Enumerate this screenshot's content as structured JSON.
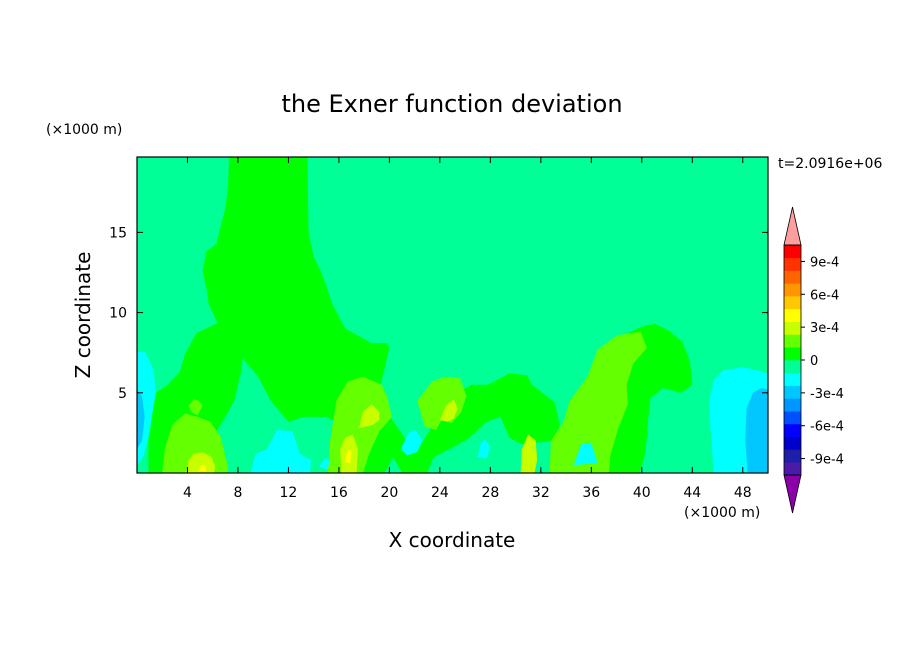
{
  "chart_data": {
    "type": "heatmap",
    "title": "the Exner function deviation",
    "xlabel": "X coordinate",
    "ylabel": "Z coordinate",
    "x_unit": "(×1000 m)",
    "y_unit": "(×1000 m)",
    "time_label": "t=2.0916e+06",
    "xlim": [
      0,
      50
    ],
    "ylim": [
      0,
      19.7
    ],
    "x_ticks": [
      4,
      8,
      12,
      16,
      20,
      24,
      28,
      32,
      36,
      40,
      44,
      48
    ],
    "y_ticks": [
      5,
      10,
      15
    ],
    "colorbar": {
      "levels": [
        -0.00105,
        -0.0009,
        -0.00075,
        -0.0006,
        -0.00045,
        -0.0003,
        -0.00015,
        0,
        0.00015,
        0.0003,
        0.00045,
        0.0006,
        0.00075,
        0.0009,
        0.00105
      ],
      "labels": [
        "-9e-4",
        "-6e-4",
        "-3e-4",
        "0",
        "3e-4",
        "6e-4",
        "9e-4"
      ],
      "label_values": [
        -0.0009,
        -0.0006,
        -0.0003,
        0,
        0.0003,
        0.0006,
        0.0009
      ],
      "colors": [
        "#8b00a8",
        "#4a1aa8",
        "#1e1ea8",
        "#0000cc",
        "#0000ff",
        "#0050ff",
        "#0096ff",
        "#00c8ff",
        "#00ffff",
        "#00ff96",
        "#00ff00",
        "#64ff00",
        "#c8ff00",
        "#ffff00",
        "#ffc800",
        "#ff9600",
        "#ff6400",
        "#ff3200",
        "#ff0000",
        "#ff9e9e"
      ]
    },
    "background_color": "#00ff96",
    "regions": [
      {
        "level": "#00ff00",
        "points": [
          [
            13.5,
            19.7
          ],
          [
            13.6,
            15
          ],
          [
            14,
            13.5
          ],
          [
            14.6,
            12.5
          ],
          [
            15.5,
            10.5
          ],
          [
            16.5,
            9
          ],
          [
            18.6,
            8.1
          ],
          [
            19.8,
            8.1
          ],
          [
            20,
            7.8
          ],
          [
            19.3,
            5.5
          ],
          [
            19.8,
            3.8
          ],
          [
            21.2,
            2.2
          ],
          [
            22.3,
            1.5
          ],
          [
            23.3,
            2.8
          ],
          [
            24.2,
            4.5
          ],
          [
            26.5,
            5.5
          ],
          [
            27.8,
            5.5
          ],
          [
            29.5,
            6.2
          ],
          [
            30.9,
            6.1
          ],
          [
            31.3,
            5.5
          ],
          [
            33.1,
            4.4
          ],
          [
            33.5,
            3
          ],
          [
            33,
            2
          ],
          [
            30.5,
            1.8
          ],
          [
            29.5,
            2.2
          ],
          [
            28.8,
            3.5
          ],
          [
            27.7,
            3.2
          ],
          [
            26.2,
            2.1
          ],
          [
            24.8,
            1.5
          ],
          [
            23.5,
            1
          ],
          [
            23,
            0
          ],
          [
            21,
            0
          ],
          [
            20.3,
            1
          ],
          [
            19.6,
            0
          ],
          [
            18,
            0
          ],
          [
            17.5,
            1.5
          ],
          [
            17.2,
            2.5
          ],
          [
            16.3,
            3
          ],
          [
            15,
            3.5
          ],
          [
            13.2,
            3.5
          ],
          [
            12,
            3.2
          ],
          [
            10.6,
            4.5
          ],
          [
            9.6,
            6
          ],
          [
            8,
            7.5
          ],
          [
            6.8,
            8.3
          ],
          [
            6.3,
            9.5
          ],
          [
            5.7,
            10.5
          ],
          [
            5.5,
            11.5
          ],
          [
            5.2,
            12.6
          ],
          [
            5.5,
            13.8
          ],
          [
            6.3,
            14.3
          ],
          [
            6.7,
            15.6
          ],
          [
            7,
            16.5
          ],
          [
            7.2,
            17.8
          ],
          [
            7.3,
            19.7
          ]
        ]
      },
      {
        "level": "#00ff00",
        "points": [
          [
            12,
            14.3
          ],
          [
            12.4,
            14.3
          ],
          [
            12.5,
            13.5
          ],
          [
            12,
            13
          ],
          [
            11.6,
            13.4
          ],
          [
            11.5,
            14
          ]
        ]
      },
      {
        "level": "#00ff00",
        "points": [
          [
            0.9,
            0
          ],
          [
            0.9,
            3.7
          ],
          [
            1.3,
            4.9
          ],
          [
            2.3,
            5.4
          ],
          [
            3.4,
            6.3
          ],
          [
            3.8,
            7.4
          ],
          [
            4.7,
            8.7
          ],
          [
            6.5,
            9.4
          ],
          [
            7.3,
            9.9
          ],
          [
            7.9,
            10.2
          ],
          [
            8.2,
            10.4
          ],
          [
            8.8,
            9.8
          ],
          [
            8.5,
            8.5
          ],
          [
            8.3,
            6.5
          ],
          [
            7.7,
            4.5
          ],
          [
            7,
            3.5
          ],
          [
            6.3,
            2.6
          ],
          [
            5.3,
            1.6
          ],
          [
            4.3,
            0.5
          ],
          [
            4,
            0
          ]
        ]
      },
      {
        "level": "#00ff00",
        "points": [
          [
            34.5,
            0
          ],
          [
            34.2,
            2
          ],
          [
            34.2,
            4.3
          ],
          [
            35.1,
            5.3
          ],
          [
            36.3,
            5.5
          ],
          [
            37.2,
            6.2
          ],
          [
            37.5,
            7
          ],
          [
            38.6,
            8.6
          ],
          [
            39.9,
            9.1
          ],
          [
            41,
            9.3
          ],
          [
            42.1,
            8.9
          ],
          [
            43.2,
            8.2
          ],
          [
            43.8,
            7
          ],
          [
            44,
            5.5
          ],
          [
            43.1,
            5
          ],
          [
            41.7,
            5.3
          ],
          [
            40.7,
            4.7
          ],
          [
            40.5,
            3.3
          ],
          [
            40.3,
            1.3
          ],
          [
            39.8,
            0
          ]
        ]
      },
      {
        "level": "#64ff00",
        "points": [
          [
            2,
            0
          ],
          [
            2.2,
            1.5
          ],
          [
            2.8,
            3
          ],
          [
            3.8,
            3.7
          ],
          [
            4.8,
            3.5
          ],
          [
            5.8,
            3.2
          ],
          [
            6.6,
            2.3
          ],
          [
            6.9,
            1.4
          ],
          [
            7.2,
            0.4
          ],
          [
            7.2,
            0
          ]
        ]
      },
      {
        "level": "#64ff00",
        "points": [
          [
            4.1,
            4.2
          ],
          [
            4.5,
            4.6
          ],
          [
            4.9,
            4.5
          ],
          [
            5.2,
            4.2
          ],
          [
            4.8,
            3.6
          ],
          [
            4.3,
            3.8
          ]
        ]
      },
      {
        "level": "#64ff00",
        "points": [
          [
            15.1,
            0
          ],
          [
            15.3,
            2
          ],
          [
            15.8,
            4.5
          ],
          [
            16.7,
            5.7
          ],
          [
            17.9,
            6
          ],
          [
            19.4,
            5.5
          ],
          [
            19.8,
            4.8
          ],
          [
            20.2,
            3.5
          ],
          [
            19.2,
            2.6
          ],
          [
            18.4,
            1.2
          ],
          [
            17.9,
            0
          ]
        ]
      },
      {
        "level": "#64ff00",
        "points": [
          [
            22.2,
            4.5
          ],
          [
            23.4,
            5.7
          ],
          [
            24.4,
            6
          ],
          [
            25.6,
            5.9
          ],
          [
            26.1,
            4.8
          ],
          [
            25.7,
            3.8
          ],
          [
            24.9,
            3.1
          ],
          [
            24.2,
            3.4
          ],
          [
            23.7,
            2.7
          ],
          [
            22.8,
            2.9
          ]
        ]
      },
      {
        "level": "#64ff00",
        "points": [
          [
            32.7,
            0
          ],
          [
            32.8,
            2
          ],
          [
            33.8,
            3.2
          ],
          [
            34.3,
            4.5
          ],
          [
            35.7,
            6
          ],
          [
            36.5,
            7.7
          ],
          [
            38.1,
            8.6
          ],
          [
            39.9,
            8.8
          ],
          [
            40.4,
            7.8
          ],
          [
            39.3,
            6.8
          ],
          [
            38.8,
            5.5
          ],
          [
            38.9,
            4.3
          ],
          [
            38.1,
            2.7
          ],
          [
            37.5,
            1.1
          ],
          [
            37.4,
            0
          ]
        ]
      },
      {
        "level": "#c8ff00",
        "points": [
          [
            3.9,
            0
          ],
          [
            4.1,
            0.8
          ],
          [
            4.5,
            1.2
          ],
          [
            5.2,
            1.3
          ],
          [
            5.9,
            1
          ],
          [
            6.2,
            0.4
          ],
          [
            6.1,
            0
          ]
        ]
      },
      {
        "level": "#c8ff00",
        "points": [
          [
            16.2,
            0
          ],
          [
            16.1,
            1.5
          ],
          [
            16.5,
            2.2
          ],
          [
            17.1,
            2.4
          ],
          [
            17.5,
            1.5
          ],
          [
            17.4,
            0
          ]
        ]
      },
      {
        "level": "#c8ff00",
        "points": [
          [
            17.6,
            2.8
          ],
          [
            17.9,
            3.8
          ],
          [
            18.6,
            4.3
          ],
          [
            19.2,
            3.8
          ],
          [
            19.2,
            3.3
          ],
          [
            18.7,
            3
          ]
        ]
      },
      {
        "level": "#c8ff00",
        "points": [
          [
            24,
            3.3
          ],
          [
            24.5,
            4.2
          ],
          [
            25.1,
            4.6
          ],
          [
            25.4,
            4
          ],
          [
            25.1,
            3.4
          ],
          [
            24.6,
            3.2
          ]
        ]
      },
      {
        "level": "#c8ff00",
        "points": [
          [
            30.4,
            0
          ],
          [
            30.5,
            1.5
          ],
          [
            31,
            2.4
          ],
          [
            31.6,
            2
          ],
          [
            31.7,
            0.8
          ],
          [
            31.5,
            0
          ]
        ]
      },
      {
        "level": "#ffff00",
        "points": [
          [
            4.9,
            0.1
          ],
          [
            5.1,
            0.5
          ],
          [
            5.4,
            0.5
          ],
          [
            5.5,
            0.1
          ]
        ]
      },
      {
        "level": "#ffff00",
        "points": [
          [
            16.5,
            0.7
          ],
          [
            16.7,
            1.4
          ],
          [
            17,
            1.4
          ],
          [
            16.9,
            0.6
          ]
        ]
      },
      {
        "level": "#00ffff",
        "points": [
          [
            0,
            7.5
          ],
          [
            0.6,
            7.6
          ],
          [
            1.3,
            6.5
          ],
          [
            1.5,
            5
          ],
          [
            1.2,
            3.6
          ],
          [
            1,
            2.5
          ],
          [
            0.5,
            1
          ],
          [
            0,
            0.5
          ]
        ]
      },
      {
        "level": "#00ffff",
        "points": [
          [
            9,
            0
          ],
          [
            9.4,
            1.2
          ],
          [
            10.3,
            1.5
          ],
          [
            11.1,
            2.7
          ],
          [
            12.3,
            2.6
          ],
          [
            12.9,
            1.2
          ],
          [
            13.8,
            0.8
          ],
          [
            13.7,
            0
          ]
        ]
      },
      {
        "level": "#00ffff",
        "points": [
          [
            14.4,
            0.4
          ],
          [
            14.9,
            0.9
          ],
          [
            15.3,
            0.9
          ],
          [
            15.1,
            0.2
          ]
        ]
      },
      {
        "level": "#00ffff",
        "points": [
          [
            20.9,
            1.5
          ],
          [
            21.5,
            2.5
          ],
          [
            22.1,
            2.7
          ],
          [
            22.6,
            2
          ],
          [
            22.2,
            1.3
          ],
          [
            21.4,
            1.1
          ]
        ]
      },
      {
        "level": "#00ffff",
        "points": [
          [
            27,
            1
          ],
          [
            27.2,
            1.8
          ],
          [
            27.6,
            2.1
          ],
          [
            28,
            1.6
          ],
          [
            27.7,
            0.9
          ]
        ]
      },
      {
        "level": "#00ffff",
        "points": [
          [
            34.6,
            0.5
          ],
          [
            35.2,
            1.8
          ],
          [
            36,
            1.9
          ],
          [
            36.5,
            0.6
          ]
        ]
      },
      {
        "level": "#00ffff",
        "points": [
          [
            45.7,
            0
          ],
          [
            45.5,
            2.2
          ],
          [
            45.3,
            4.3
          ],
          [
            45.7,
            5.8
          ],
          [
            46.5,
            6.4
          ],
          [
            48,
            6.6
          ],
          [
            49.2,
            6.4
          ],
          [
            50,
            6.2
          ],
          [
            50,
            0
          ]
        ]
      },
      {
        "level": "#00c8ff",
        "points": [
          [
            0,
            5.2
          ],
          [
            0.4,
            4.8
          ],
          [
            0.6,
            3.5
          ],
          [
            0.4,
            2
          ],
          [
            0,
            1.5
          ]
        ]
      },
      {
        "level": "#00c8ff",
        "points": [
          [
            48.4,
            0
          ],
          [
            48.2,
            2
          ],
          [
            48.3,
            4
          ],
          [
            48.8,
            5
          ],
          [
            49.5,
            5.3
          ],
          [
            50,
            5.2
          ],
          [
            50,
            0
          ]
        ]
      }
    ]
  }
}
